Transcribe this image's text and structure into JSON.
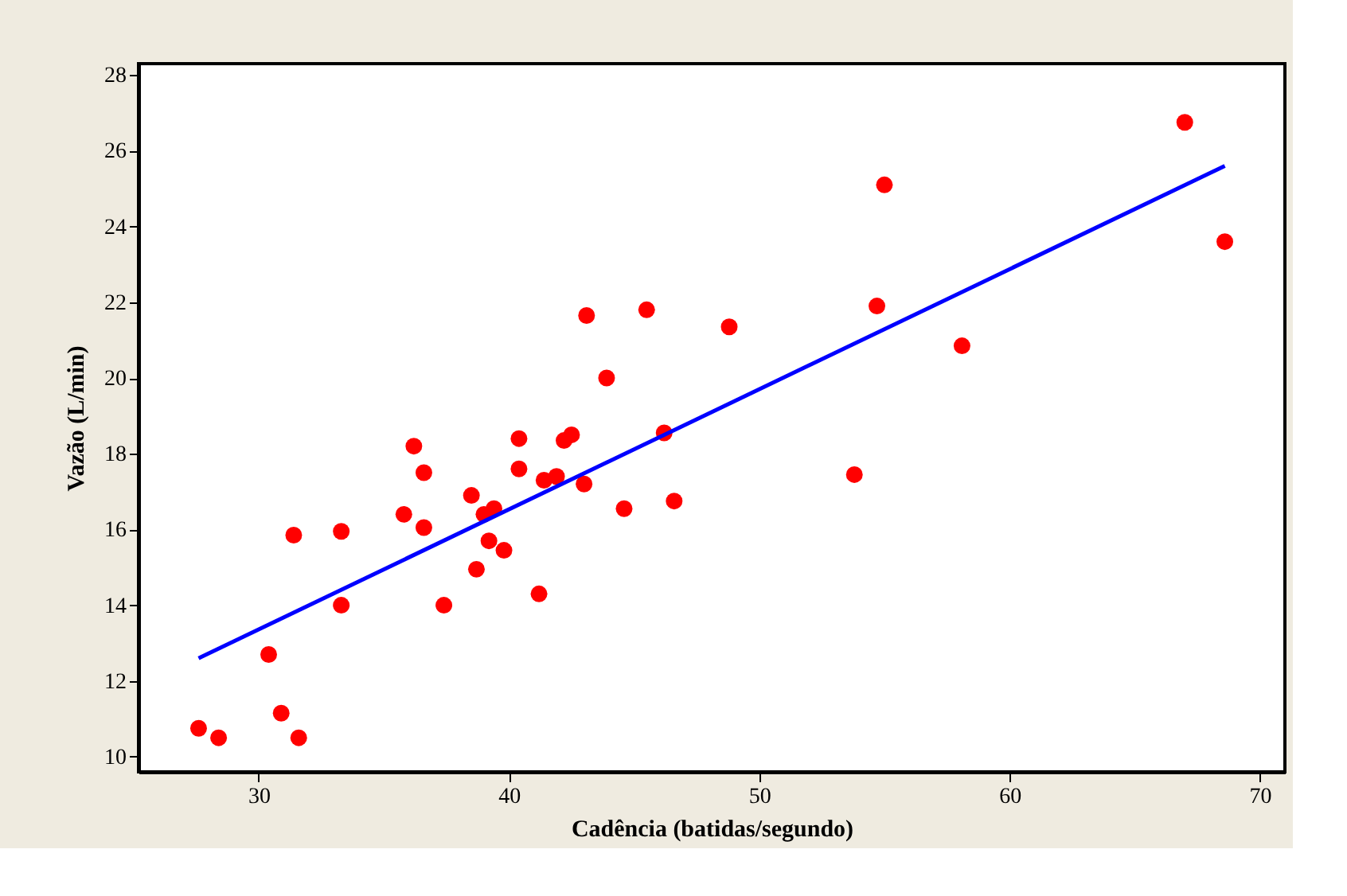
{
  "chart_data": {
    "type": "scatter",
    "xlabel": "Cadência (batidas/segundo)",
    "ylabel": "Vazão (L/min)",
    "xlim": [
      25.2,
      71.0
    ],
    "ylim": [
      9.6,
      28.3
    ],
    "xticks": [
      30,
      40,
      50,
      60,
      70
    ],
    "yticks": [
      10,
      12,
      14,
      16,
      18,
      20,
      22,
      24,
      26,
      28
    ],
    "marker": "circle",
    "series": [
      {
        "color": "#ff0000",
        "x": [
          27.6,
          28.4,
          30.4,
          30.9,
          31.4,
          31.6,
          33.3,
          33.3,
          35.8,
          36.2,
          36.6,
          36.6,
          37.4,
          38.5,
          38.7,
          39.0,
          39.2,
          39.4,
          39.8,
          40.4,
          40.4,
          41.2,
          41.4,
          41.9,
          42.2,
          42.5,
          43.0,
          43.1,
          43.9,
          44.6,
          45.5,
          46.2,
          46.6,
          48.8,
          53.8,
          54.7,
          55.0,
          58.1,
          67.0,
          68.6
        ],
        "values": [
          10.75,
          10.5,
          12.7,
          11.15,
          15.85,
          10.5,
          15.95,
          14.0,
          16.4,
          18.2,
          17.5,
          16.05,
          14.0,
          16.9,
          14.95,
          16.4,
          15.7,
          16.55,
          15.45,
          18.4,
          17.6,
          14.3,
          17.3,
          17.4,
          18.35,
          18.5,
          17.2,
          21.65,
          20.0,
          16.55,
          21.8,
          18.55,
          16.75,
          21.35,
          17.45,
          21.9,
          25.1,
          20.85,
          26.75,
          23.6
        ]
      },
      {
        "type": "line",
        "color": "#0000ff",
        "x": [
          27.6,
          68.6
        ],
        "values": [
          12.6,
          25.6
        ],
        "line_style": "solid",
        "marker": "none"
      }
    ]
  }
}
